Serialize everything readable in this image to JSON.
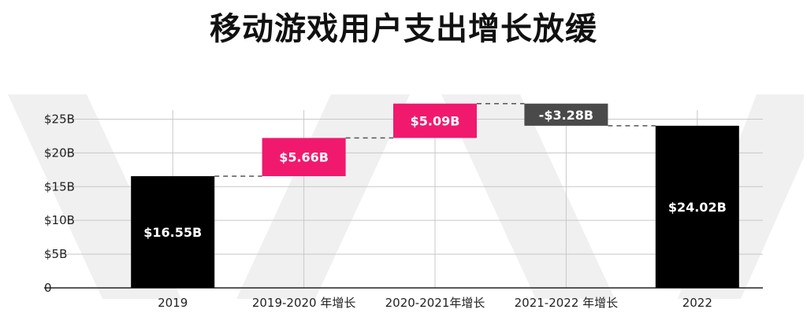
{
  "title": "移动游戏用户支出增长放缓",
  "colors": {
    "total": "#000000",
    "increase": "#f0196e",
    "decrease": "#4a4a4a",
    "connector": "#555555",
    "grid": "#c8c8c8",
    "axis": "#222222",
    "watermark": "#f0f0f0"
  },
  "chart_data": {
    "type": "bar",
    "subtype": "waterfall",
    "categories": [
      "2019",
      "2019-2020 年增长",
      "2020-2021年增长",
      "2021-2022 年增长",
      "2022"
    ],
    "bars": [
      {
        "kind": "total",
        "start": 0,
        "end": 16.55,
        "label": "$16.55B"
      },
      {
        "kind": "increase",
        "start": 16.55,
        "end": 22.21,
        "label": "$5.66B"
      },
      {
        "kind": "increase",
        "start": 22.21,
        "end": 27.3,
        "label": "$5.09B"
      },
      {
        "kind": "decrease",
        "start": 27.3,
        "end": 24.02,
        "label": "-$3.28B"
      },
      {
        "kind": "total",
        "start": 0,
        "end": 24.02,
        "label": "$24.02B"
      }
    ],
    "yticks": [
      {
        "value": 0,
        "label": "0"
      },
      {
        "value": 5,
        "label": "$5B"
      },
      {
        "value": 10,
        "label": "$10B"
      },
      {
        "value": 15,
        "label": "$15B"
      },
      {
        "value": 20,
        "label": "$20B"
      },
      {
        "value": 25,
        "label": "$25B"
      }
    ],
    "ylim": [
      0,
      27.5
    ],
    "grid": true
  }
}
